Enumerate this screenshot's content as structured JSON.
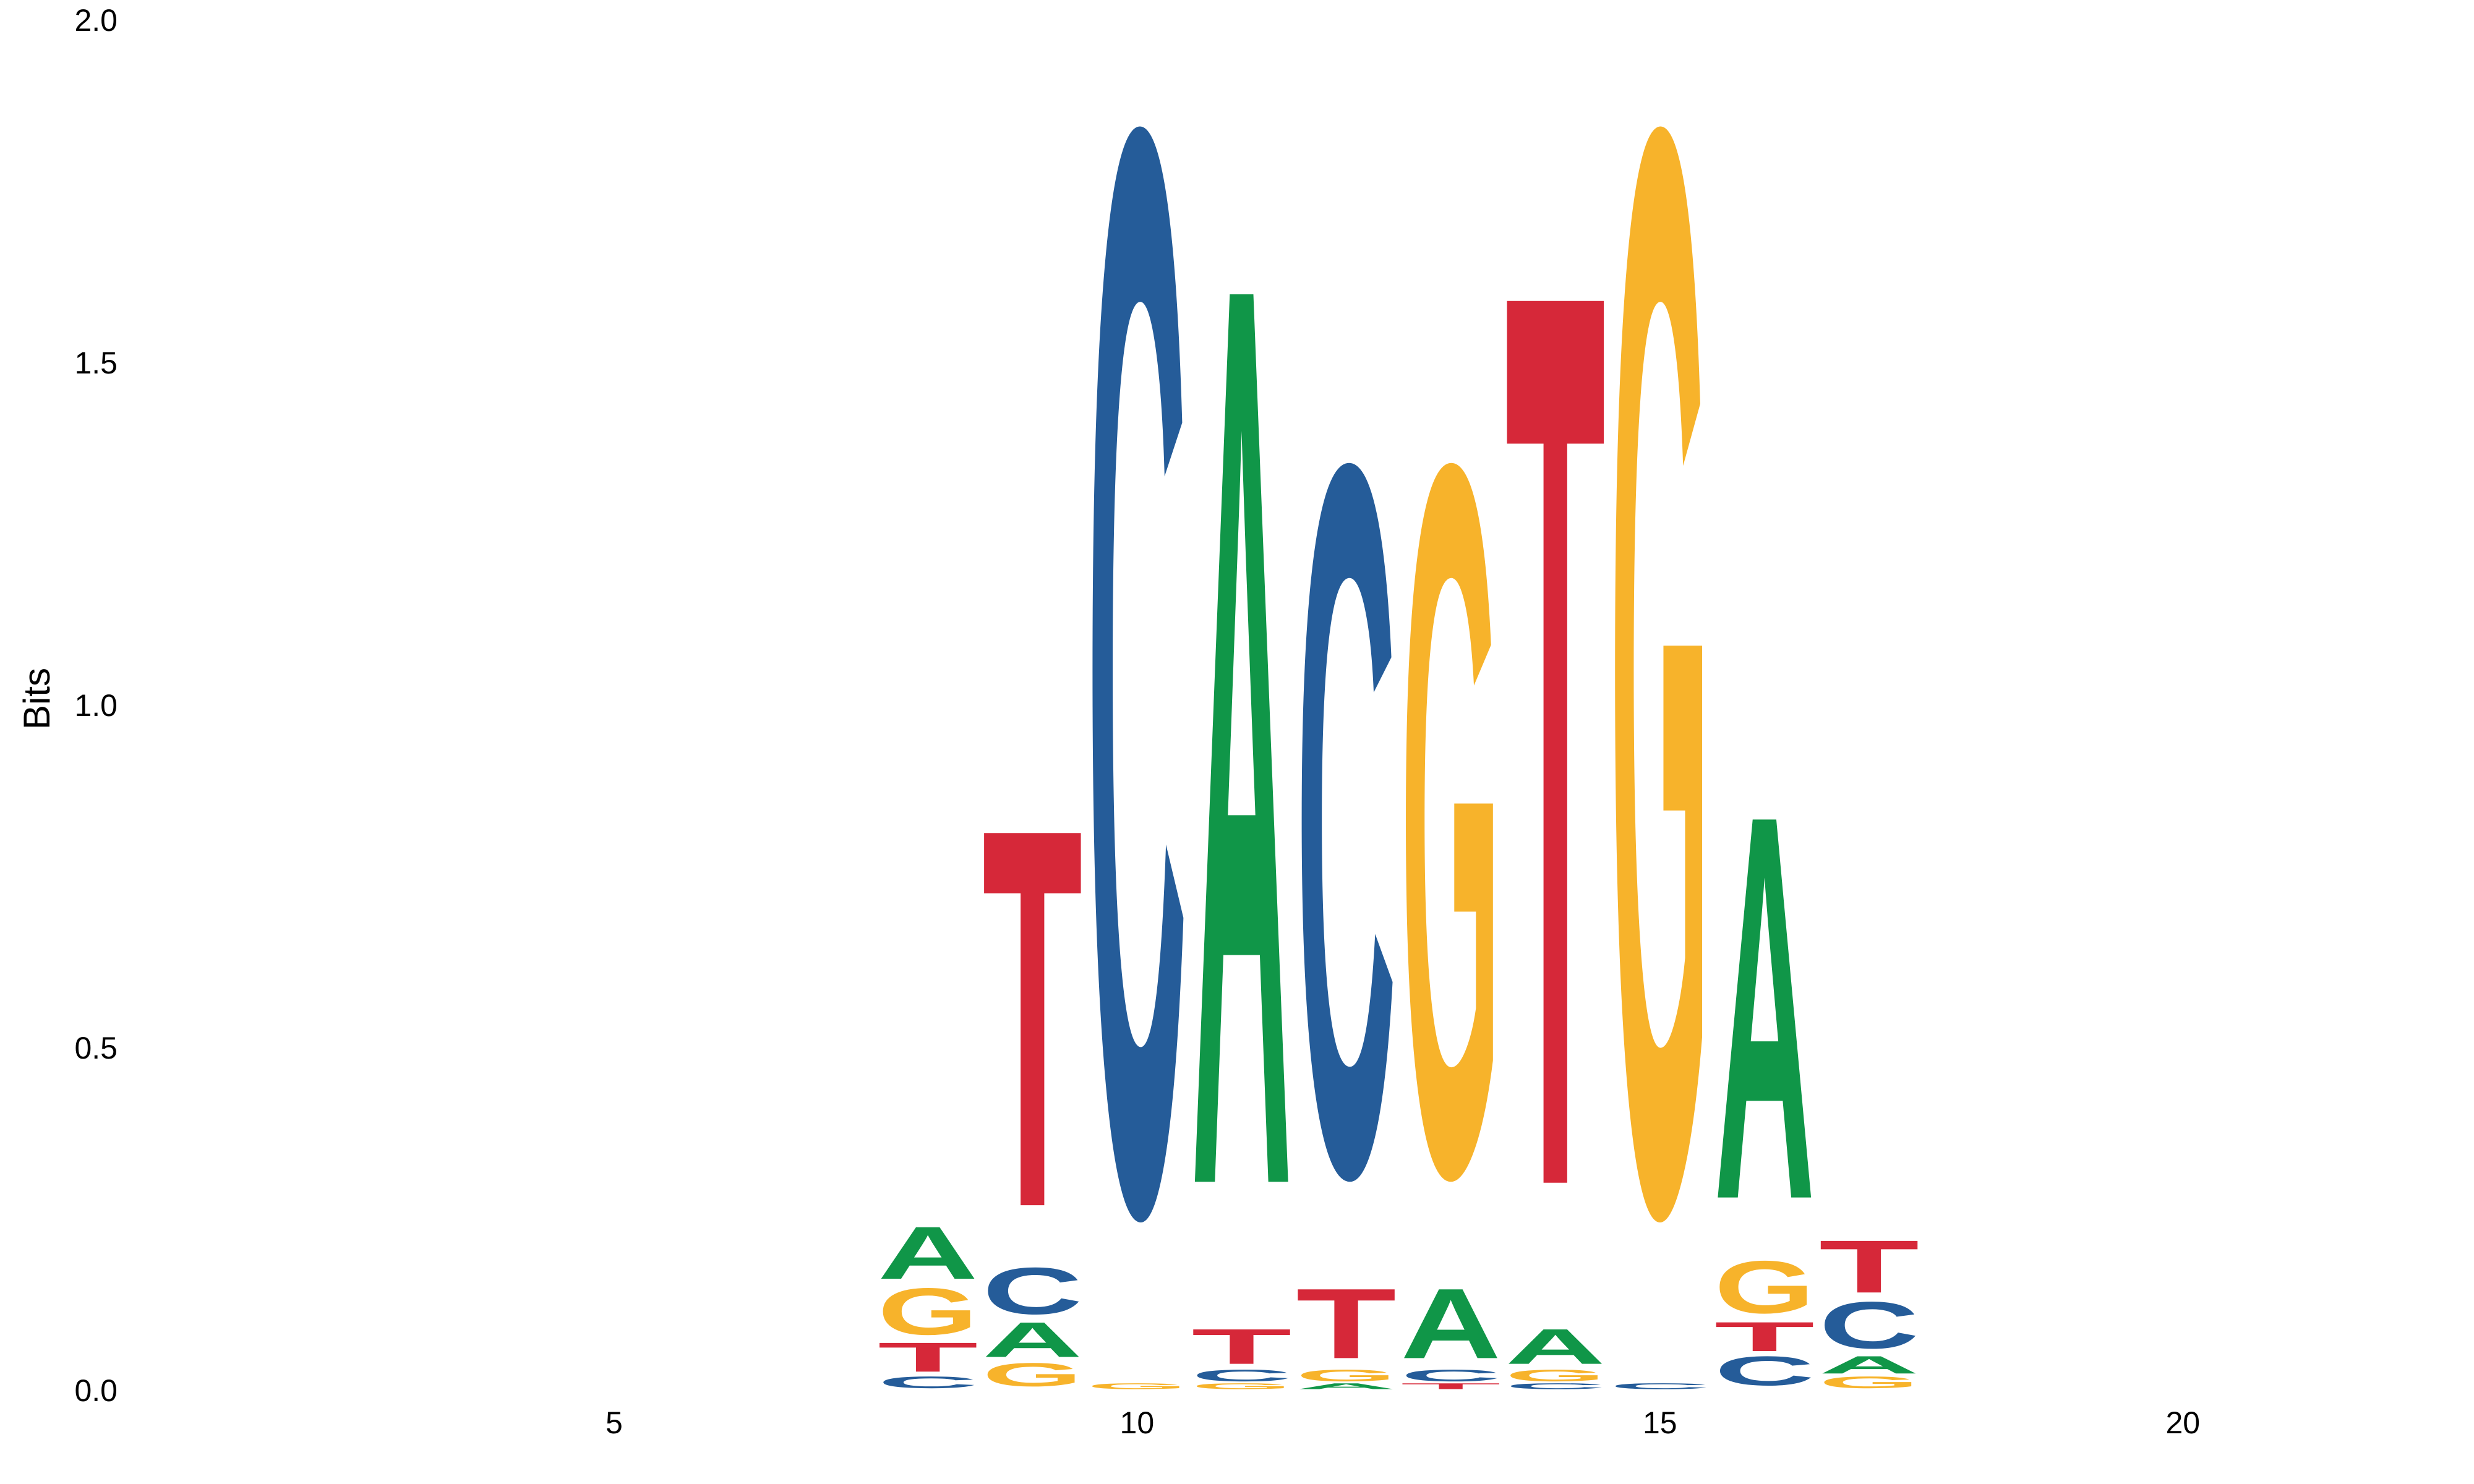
{
  "chart_data": {
    "type": "sequence-logo",
    "ylabel": "Bits",
    "xlabel": "",
    "ylim": [
      0,
      2.0
    ],
    "xlim": [
      0.5,
      22.5
    ],
    "y_ticks": [
      "0.0",
      "0.5",
      "1.0",
      "1.5",
      "2.0"
    ],
    "x_ticks": [
      "5",
      "10",
      "15",
      "20"
    ],
    "grid": false,
    "colors": {
      "A": "#109648",
      "C": "#255C99",
      "G": "#F7B32B",
      "T": "#D62839"
    },
    "positions": [
      {
        "pos": 8,
        "letters": [
          {
            "base": "C",
            "height": 0.02
          },
          {
            "base": "T",
            "height": 0.05
          },
          {
            "base": "G",
            "height": 0.08
          },
          {
            "base": "A",
            "height": 0.09
          }
        ]
      },
      {
        "pos": 9,
        "letters": [
          {
            "base": "G",
            "height": 0.04
          },
          {
            "base": "A",
            "height": 0.06
          },
          {
            "base": "C",
            "height": 0.08
          },
          {
            "base": "T",
            "height": 0.65
          }
        ]
      },
      {
        "pos": 10,
        "letters": [
          {
            "base": "G",
            "height": 0.01
          },
          {
            "base": "C",
            "height": 1.86
          }
        ]
      },
      {
        "pos": 11,
        "letters": [
          {
            "base": "G",
            "height": 0.01
          },
          {
            "base": "C",
            "height": 0.02
          },
          {
            "base": "T",
            "height": 0.06
          },
          {
            "base": "A",
            "height": 1.55
          }
        ]
      },
      {
        "pos": 12,
        "letters": [
          {
            "base": "A",
            "height": 0.01
          },
          {
            "base": "G",
            "height": 0.02
          },
          {
            "base": "T",
            "height": 0.12
          },
          {
            "base": "C",
            "height": 1.22
          }
        ]
      },
      {
        "pos": 13,
        "letters": [
          {
            "base": "T",
            "height": 0.01
          },
          {
            "base": "C",
            "height": 0.02
          },
          {
            "base": "A",
            "height": 0.12
          },
          {
            "base": "G",
            "height": 1.22
          }
        ]
      },
      {
        "pos": 14,
        "letters": [
          {
            "base": "C",
            "height": 0.01
          },
          {
            "base": "G",
            "height": 0.02
          },
          {
            "base": "A",
            "height": 0.06
          },
          {
            "base": "T",
            "height": 1.54
          }
        ]
      },
      {
        "pos": 15,
        "letters": [
          {
            "base": "C",
            "height": 0.01
          },
          {
            "base": "G",
            "height": 1.86
          }
        ]
      },
      {
        "pos": 16,
        "letters": [
          {
            "base": "C",
            "height": 0.05
          },
          {
            "base": "T",
            "height": 0.05
          },
          {
            "base": "G",
            "height": 0.09
          },
          {
            "base": "A",
            "height": 0.66
          }
        ]
      },
      {
        "pos": 17,
        "letters": [
          {
            "base": "G",
            "height": 0.02
          },
          {
            "base": "A",
            "height": 0.03
          },
          {
            "base": "C",
            "height": 0.08
          },
          {
            "base": "T",
            "height": 0.09
          }
        ]
      }
    ]
  }
}
